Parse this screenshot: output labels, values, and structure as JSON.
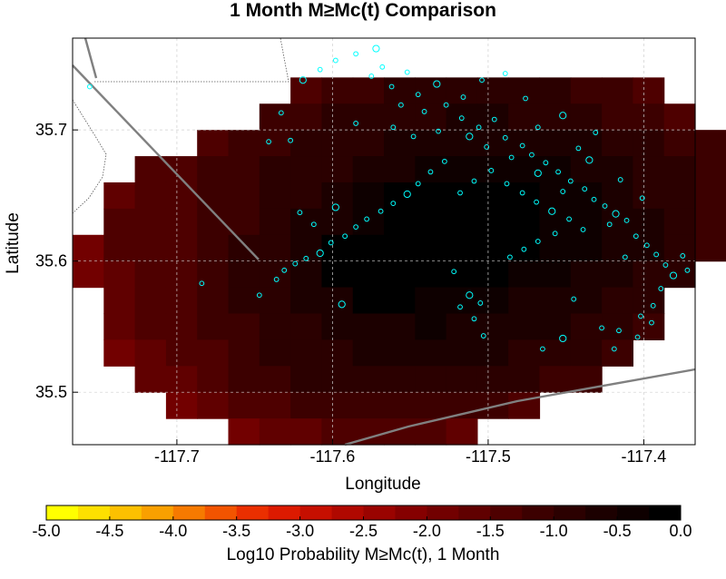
{
  "chart_data": [
    {
      "type": "heatmap",
      "title": "1 Month M≥Mc(t) Comparison",
      "xlabel": "Longitude",
      "ylabel": "Latitude",
      "xlim": [
        -117.767,
        -117.367
      ],
      "ylim": [
        35.46,
        35.77
      ],
      "x_ticks": [
        -117.7,
        -117.6,
        -117.5,
        -117.4
      ],
      "x_tick_labels": [
        "-117.7",
        "-117.6",
        "-117.5",
        "-117.4"
      ],
      "y_ticks": [
        35.5,
        35.6,
        35.7
      ],
      "y_tick_labels": [
        "35.5",
        "35.6",
        "35.7"
      ],
      "grid": true,
      "grid_cell_size_deg": 0.02,
      "grid_origin": {
        "lon": -117.767,
        "lat": 35.46
      },
      "cell_values_note": "rows listed from north to south; columns west to east starting at lon -117.767; null = no data",
      "cell_values": [
        [
          null,
          null,
          null,
          null,
          null,
          null,
          null,
          -1.35,
          -1.2,
          -1.1,
          -1.0,
          -0.95,
          -0.9,
          -0.9,
          -0.95,
          -1.0,
          -1.1,
          -1.2,
          -1.3,
          null,
          null
        ],
        [
          null,
          null,
          null,
          null,
          null,
          null,
          -1.25,
          -1.1,
          -1.0,
          -0.9,
          -0.85,
          -0.8,
          -0.75,
          -0.75,
          -0.8,
          -0.85,
          -0.95,
          -1.05,
          -1.15,
          -1.3,
          null
        ],
        [
          null,
          null,
          null,
          null,
          -1.3,
          -1.2,
          -1.1,
          -1.0,
          -0.9,
          -0.8,
          -0.7,
          -0.65,
          -0.6,
          -0.55,
          -0.6,
          -0.65,
          -0.75,
          -0.85,
          -1.0,
          -1.1,
          -1.25
        ],
        [
          null,
          null,
          -1.4,
          -1.3,
          -1.2,
          -1.1,
          -1.0,
          -0.9,
          -0.8,
          -0.7,
          -0.55,
          -0.35,
          -0.3,
          -0.35,
          -0.4,
          -0.5,
          -0.6,
          -0.75,
          -0.9,
          -1.0,
          -1.15
        ],
        [
          null,
          -1.55,
          -1.45,
          -1.35,
          -1.25,
          -1.1,
          -1.0,
          -0.85,
          -0.7,
          -0.5,
          -0.2,
          -0.1,
          -0.15,
          -0.2,
          -0.25,
          -0.35,
          -0.5,
          -0.65,
          -0.8,
          -0.95,
          -1.1
        ],
        [
          null,
          -1.5,
          -1.4,
          -1.3,
          -1.2,
          -1.05,
          -0.9,
          -0.75,
          -0.6,
          -0.3,
          -0.05,
          -0.05,
          -0.05,
          -0.1,
          -0.2,
          -0.3,
          -0.45,
          -0.6,
          -0.75,
          -0.9,
          -1.05
        ],
        [
          -1.8,
          -1.5,
          -1.4,
          -1.3,
          -1.15,
          -1.0,
          -0.85,
          -0.7,
          -0.1,
          -0.05,
          -0.05,
          -0.05,
          -0.05,
          -0.05,
          -0.15,
          -0.3,
          -0.45,
          -0.6,
          -0.75,
          -0.9,
          -1.05
        ],
        [
          -1.85,
          -1.55,
          -1.45,
          -1.3,
          -1.15,
          -1.0,
          -0.85,
          -0.7,
          -0.15,
          -0.05,
          -0.05,
          -0.05,
          -0.05,
          -0.15,
          -0.3,
          -0.45,
          -0.55,
          -0.7,
          -0.85,
          -1.0,
          null
        ],
        [
          null,
          -1.6,
          -1.45,
          -1.3,
          -1.15,
          -1.0,
          -0.85,
          -0.75,
          -0.6,
          -0.1,
          -0.05,
          -0.4,
          -0.45,
          -0.5,
          -0.55,
          -0.6,
          -0.7,
          -0.85,
          -1.0,
          null,
          null
        ],
        [
          null,
          -1.75,
          -1.5,
          -1.35,
          -1.2,
          -1.05,
          -0.9,
          -0.8,
          -0.7,
          -0.6,
          -0.55,
          -0.5,
          -0.55,
          -0.6,
          -0.65,
          -0.75,
          -0.85,
          -0.95,
          -1.1,
          null,
          null
        ],
        [
          null,
          -1.9,
          -1.6,
          -1.45,
          -1.3,
          -1.15,
          -1.0,
          -0.9,
          -0.8,
          -0.7,
          -0.65,
          -0.65,
          -0.7,
          -0.75,
          -0.8,
          -0.9,
          -1.0,
          -1.1,
          null,
          null,
          null
        ],
        [
          null,
          null,
          -1.7,
          -1.55,
          -1.4,
          -1.25,
          -1.1,
          -1.0,
          -0.9,
          -0.85,
          -0.85,
          -0.85,
          -0.9,
          -0.95,
          -1.0,
          -1.1,
          -1.2,
          null,
          null,
          null,
          null
        ],
        [
          null,
          null,
          null,
          -1.85,
          -1.7,
          -1.5,
          -1.35,
          -1.25,
          -1.15,
          -1.1,
          -1.1,
          -1.15,
          -1.2,
          -1.25,
          -1.3,
          null,
          null,
          null,
          null,
          null,
          null
        ],
        [
          null,
          null,
          null,
          null,
          null,
          -1.95,
          -1.75,
          -1.6,
          -1.5,
          -1.45,
          -1.45,
          -1.5,
          -1.55,
          null,
          null,
          null,
          null,
          null,
          null,
          null,
          null
        ]
      ],
      "earthquakes": [
        {
          "lon": -117.572,
          "lat": 35.762
        },
        {
          "lon": -117.585,
          "lat": 35.758
        },
        {
          "lon": -117.568,
          "lat": 35.748
        },
        {
          "lon": -117.575,
          "lat": 35.741
        },
        {
          "lon": -117.552,
          "lat": 35.744
        },
        {
          "lon": -117.562,
          "lat": 35.733
        },
        {
          "lon": -117.545,
          "lat": 35.727
        },
        {
          "lon": -117.533,
          "lat": 35.735
        },
        {
          "lon": -117.556,
          "lat": 35.719
        },
        {
          "lon": -117.541,
          "lat": 35.714
        },
        {
          "lon": -117.527,
          "lat": 35.719
        },
        {
          "lon": -117.517,
          "lat": 35.709
        },
        {
          "lon": -117.506,
          "lat": 35.702
        },
        {
          "lon": -117.496,
          "lat": 35.708
        },
        {
          "lon": -117.512,
          "lat": 35.695
        },
        {
          "lon": -117.501,
          "lat": 35.687
        },
        {
          "lon": -117.489,
          "lat": 35.694
        },
        {
          "lon": -117.478,
          "lat": 35.688
        },
        {
          "lon": -117.485,
          "lat": 35.679
        },
        {
          "lon": -117.472,
          "lat": 35.681
        },
        {
          "lon": -117.463,
          "lat": 35.675
        },
        {
          "lon": -117.468,
          "lat": 35.667
        },
        {
          "lon": -117.455,
          "lat": 35.668
        },
        {
          "lon": -117.447,
          "lat": 35.661
        },
        {
          "lon": -117.452,
          "lat": 35.653
        },
        {
          "lon": -117.438,
          "lat": 35.655
        },
        {
          "lon": -117.432,
          "lat": 35.647
        },
        {
          "lon": -117.425,
          "lat": 35.642
        },
        {
          "lon": -117.418,
          "lat": 35.636
        },
        {
          "lon": -117.422,
          "lat": 35.628
        },
        {
          "lon": -117.411,
          "lat": 35.631
        },
        {
          "lon": -117.405,
          "lat": 35.619
        },
        {
          "lon": -117.398,
          "lat": 35.612
        },
        {
          "lon": -117.392,
          "lat": 35.605
        },
        {
          "lon": -117.386,
          "lat": 35.597
        },
        {
          "lon": -117.381,
          "lat": 35.589
        },
        {
          "lon": -117.389,
          "lat": 35.579
        },
        {
          "lon": -117.394,
          "lat": 35.566
        },
        {
          "lon": -117.402,
          "lat": 35.558
        },
        {
          "lon": -117.528,
          "lat": 35.676
        },
        {
          "lon": -117.537,
          "lat": 35.668
        },
        {
          "lon": -117.545,
          "lat": 35.659
        },
        {
          "lon": -117.552,
          "lat": 35.651
        },
        {
          "lon": -117.561,
          "lat": 35.644
        },
        {
          "lon": -117.569,
          "lat": 35.638
        },
        {
          "lon": -117.578,
          "lat": 35.632
        },
        {
          "lon": -117.585,
          "lat": 35.626
        },
        {
          "lon": -117.592,
          "lat": 35.619
        },
        {
          "lon": -117.601,
          "lat": 35.614
        },
        {
          "lon": -117.608,
          "lat": 35.606
        },
        {
          "lon": -117.617,
          "lat": 35.602
        },
        {
          "lon": -117.624,
          "lat": 35.598
        },
        {
          "lon": -117.631,
          "lat": 35.593
        },
        {
          "lon": -117.636,
          "lat": 35.586
        },
        {
          "lon": -117.612,
          "lat": 35.628
        },
        {
          "lon": -117.621,
          "lat": 35.637
        },
        {
          "lon": -117.598,
          "lat": 35.641
        },
        {
          "lon": -117.518,
          "lat": 35.652
        },
        {
          "lon": -117.509,
          "lat": 35.661
        },
        {
          "lon": -117.498,
          "lat": 35.669
        },
        {
          "lon": -117.488,
          "lat": 35.659
        },
        {
          "lon": -117.478,
          "lat": 35.652
        },
        {
          "lon": -117.469,
          "lat": 35.645
        },
        {
          "lon": -117.459,
          "lat": 35.638
        },
        {
          "lon": -117.448,
          "lat": 35.632
        },
        {
          "lon": -117.439,
          "lat": 35.624
        },
        {
          "lon": -117.457,
          "lat": 35.621
        },
        {
          "lon": -117.468,
          "lat": 35.615
        },
        {
          "lon": -117.477,
          "lat": 35.609
        },
        {
          "lon": -117.486,
          "lat": 35.603
        },
        {
          "lon": -117.512,
          "lat": 35.574
        },
        {
          "lon": -117.505,
          "lat": 35.568
        },
        {
          "lon": -117.518,
          "lat": 35.565
        },
        {
          "lon": -117.509,
          "lat": 35.556
        },
        {
          "lon": -117.503,
          "lat": 35.543
        },
        {
          "lon": -117.522,
          "lat": 35.592
        },
        {
          "lon": -117.465,
          "lat": 35.533
        },
        {
          "lon": -117.452,
          "lat": 35.541
        },
        {
          "lon": -117.445,
          "lat": 35.571
        },
        {
          "lon": -117.427,
          "lat": 35.549
        },
        {
          "lon": -117.416,
          "lat": 35.547
        },
        {
          "lon": -117.419,
          "lat": 35.533
        },
        {
          "lon": -117.404,
          "lat": 35.542
        },
        {
          "lon": -117.395,
          "lat": 35.553
        },
        {
          "lon": -117.435,
          "lat": 35.677
        },
        {
          "lon": -117.442,
          "lat": 35.686
        },
        {
          "lon": -117.489,
          "lat": 35.743
        },
        {
          "lon": -117.476,
          "lat": 35.724
        },
        {
          "lon": -117.504,
          "lat": 35.738
        },
        {
          "lon": -117.598,
          "lat": 35.753
        },
        {
          "lon": -117.608,
          "lat": 35.746
        },
        {
          "lon": -117.619,
          "lat": 35.738
        },
        {
          "lon": -117.633,
          "lat": 35.713
        },
        {
          "lon": -117.627,
          "lat": 35.692
        },
        {
          "lon": -117.641,
          "lat": 35.691
        },
        {
          "lon": -117.756,
          "lat": 35.733
        },
        {
          "lon": -117.684,
          "lat": 35.583
        },
        {
          "lon": -117.647,
          "lat": 35.574
        },
        {
          "lon": -117.594,
          "lat": 35.567
        },
        {
          "lon": -117.585,
          "lat": 35.705
        },
        {
          "lon": -117.561,
          "lat": 35.702
        },
        {
          "lon": -117.548,
          "lat": 35.695
        },
        {
          "lon": -117.532,
          "lat": 35.699
        },
        {
          "lon": -117.516,
          "lat": 35.725
        },
        {
          "lon": -117.468,
          "lat": 35.702
        },
        {
          "lon": -117.452,
          "lat": 35.711
        },
        {
          "lon": -117.431,
          "lat": 35.698
        },
        {
          "lon": -117.415,
          "lat": 35.662
        },
        {
          "lon": -117.401,
          "lat": 35.648
        },
        {
          "lon": -117.412,
          "lat": 35.603
        },
        {
          "lon": -117.375,
          "lat": 35.604
        },
        {
          "lon": -117.372,
          "lat": 35.593
        }
      ],
      "colorbar": {
        "label": "Log10 Probability M≥Mc(t), 1 Month",
        "min": -5.0,
        "max": 0.0,
        "tick_values": [
          -5.0,
          -4.5,
          -4.0,
          -3.5,
          -3.0,
          -2.5,
          -2.0,
          -1.5,
          -1.0,
          -0.5,
          0.0
        ],
        "tick_labels": [
          "-5.0",
          "-4.5",
          "-4.0",
          "-3.5",
          "-3.0",
          "-2.5",
          "-2.0",
          "-1.5",
          "-1.0",
          "-0.5",
          "0.0"
        ],
        "color_steps": [
          "#ffff00",
          "#fde000",
          "#fcc000",
          "#f9a000",
          "#f67a00",
          "#f25400",
          "#ea2f00",
          "#dc1a00",
          "#c60f00",
          "#b00800",
          "#9a0300",
          "#850000",
          "#720000",
          "#600000",
          "#4e0000",
          "#3c0000",
          "#2b0000",
          "#1c0000",
          "#0e0000",
          "#000000"
        ]
      },
      "colors": {
        "marker": "#00ffff",
        "fault_line": "#808080",
        "boundary_line": "#555555",
        "grid_line": "#cfcfcf"
      }
    }
  ]
}
